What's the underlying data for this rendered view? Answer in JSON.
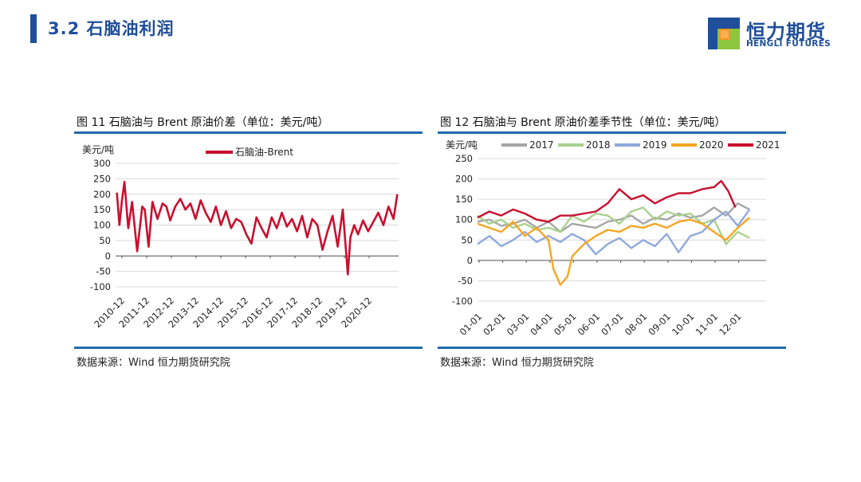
{
  "header": {
    "title": "3.2 石脑油利润",
    "logo_name": "恒力期货",
    "logo_sub": "HENGLI FUTURES",
    "logo_colors": {
      "green": "#8dc63f",
      "orange": "#f7941d",
      "blue": "#1f4e9a"
    }
  },
  "left": {
    "fig_title": "图 11 石脑油与 Brent 原油价差（单位：美元/吨）",
    "source": "数据来源：Wind 恒力期货研究院"
  },
  "right": {
    "fig_title": "图 12 石脑油与 Brent 原油价差季节性（单位：美元/吨）",
    "source": "数据来源：Wind 恒力期货研究院"
  },
  "chart_data": [
    {
      "type": "line",
      "title": "",
      "ylabel": "美元/吨",
      "xlabel": "",
      "ylim": [
        -100,
        300
      ],
      "yticks": [
        -100,
        -50,
        0,
        50,
        100,
        150,
        200,
        250,
        300
      ],
      "grid": true,
      "legend": "top",
      "x_ticklabels": [
        "2010-12",
        "2011-12",
        "2012-12",
        "2013-12",
        "2014-12",
        "2015-12",
        "2016-12",
        "2017-12",
        "2018-12",
        "2019-12",
        "2020-12"
      ],
      "series": [
        {
          "name": "石脑油-Brent",
          "color": "#c8102e",
          "x": [
            2010.9,
            2011.0,
            2011.1,
            2011.2,
            2011.35,
            2011.5,
            2011.7,
            2011.9,
            2012.0,
            2012.15,
            2012.3,
            2012.5,
            2012.7,
            2012.85,
            2013.0,
            2013.2,
            2013.4,
            2013.6,
            2013.8,
            2014.0,
            2014.2,
            2014.4,
            2014.6,
            2014.8,
            2015.0,
            2015.2,
            2015.4,
            2015.6,
            2015.8,
            2016.0,
            2016.2,
            2016.4,
            2016.6,
            2016.8,
            2017.0,
            2017.2,
            2017.4,
            2017.6,
            2017.8,
            2018.0,
            2018.2,
            2018.4,
            2018.6,
            2018.8,
            2019.0,
            2019.2,
            2019.4,
            2019.6,
            2019.8,
            2020.0,
            2020.1,
            2020.25,
            2020.4,
            2020.6,
            2020.8,
            2021.0,
            2021.2,
            2021.4,
            2021.6,
            2021.8,
            2021.95
          ],
          "y": [
            205,
            100,
            180,
            240,
            90,
            175,
            15,
            160,
            150,
            30,
            175,
            120,
            170,
            160,
            115,
            160,
            185,
            150,
            170,
            120,
            180,
            140,
            110,
            160,
            100,
            145,
            90,
            120,
            110,
            70,
            40,
            125,
            90,
            60,
            125,
            90,
            140,
            95,
            120,
            80,
            130,
            60,
            120,
            100,
            20,
            80,
            130,
            30,
            150,
            -60,
            60,
            100,
            70,
            115,
            80,
            110,
            140,
            100,
            160,
            120,
            200
          ]
        }
      ]
    },
    {
      "type": "line",
      "title": "",
      "ylabel": "美元/吨",
      "xlabel": "",
      "ylim": [
        -100,
        250
      ],
      "yticks": [
        -100,
        -50,
        0,
        50,
        100,
        150,
        200,
        250
      ],
      "grid": true,
      "legend": "top",
      "x_ticklabels": [
        "01-01",
        "02-01",
        "03-01",
        "04-01",
        "05-01",
        "06-01",
        "07-01",
        "08-01",
        "09-01",
        "10-01",
        "11-01",
        "12-01"
      ],
      "series": [
        {
          "name": "2017",
          "color": "#a6a6a6",
          "x": [
            0,
            0.5,
            1,
            1.5,
            2,
            2.5,
            3,
            3.5,
            4,
            4.5,
            5,
            5.5,
            6,
            6.5,
            7,
            7.5,
            8,
            8.5,
            9,
            9.5,
            10,
            10.5,
            11,
            11.5
          ],
          "y": [
            95,
            100,
            85,
            90,
            100,
            80,
            95,
            70,
            90,
            85,
            80,
            95,
            100,
            110,
            90,
            105,
            100,
            115,
            105,
            110,
            130,
            110,
            140,
            125
          ]
        },
        {
          "name": "2018",
          "color": "#a9d18e",
          "x": [
            0,
            0.5,
            1,
            1.5,
            2,
            2.5,
            3,
            3.5,
            4,
            4.5,
            5,
            5.5,
            6,
            6.5,
            7,
            7.5,
            8,
            8.5,
            9,
            9.5,
            10,
            10.5,
            11,
            11.5
          ],
          "y": [
            110,
            90,
            100,
            80,
            90,
            75,
            80,
            70,
            110,
            95,
            115,
            110,
            90,
            120,
            130,
            100,
            120,
            110,
            115,
            90,
            100,
            40,
            70,
            55
          ]
        },
        {
          "name": "2019",
          "color": "#8faadc",
          "x": [
            0,
            0.5,
            1,
            1.5,
            2,
            2.5,
            3,
            3.5,
            4,
            4.5,
            5,
            5.5,
            6,
            6.5,
            7,
            7.5,
            8,
            8.5,
            9,
            9.5,
            10,
            10.5,
            11,
            11.5
          ],
          "y": [
            40,
            60,
            35,
            50,
            70,
            45,
            60,
            45,
            65,
            50,
            15,
            40,
            55,
            30,
            50,
            35,
            65,
            20,
            60,
            70,
            100,
            120,
            85,
            125
          ]
        },
        {
          "name": "2020",
          "color": "#f5a623",
          "x": [
            0,
            0.5,
            1,
            1.5,
            2,
            2.5,
            3,
            3.2,
            3.5,
            3.8,
            4,
            4.5,
            5,
            5.5,
            6,
            6.5,
            7,
            7.5,
            8,
            8.5,
            9,
            9.5,
            10,
            10.5,
            11,
            11.5
          ],
          "y": [
            90,
            80,
            70,
            95,
            60,
            80,
            50,
            -20,
            -60,
            -40,
            10,
            40,
            60,
            75,
            70,
            85,
            80,
            90,
            80,
            95,
            100,
            90,
            70,
            50,
            80,
            105
          ]
        },
        {
          "name": "2021",
          "color": "#c8102e",
          "x": [
            0,
            0.5,
            1,
            1.5,
            2,
            2.5,
            3,
            3.5,
            4,
            4.5,
            5,
            5.5,
            6,
            6.5,
            7,
            7.5,
            8,
            8.5,
            9,
            9.5,
            10,
            10.3,
            10.6,
            10.9
          ],
          "y": [
            105,
            120,
            110,
            125,
            115,
            100,
            95,
            110,
            110,
            115,
            120,
            140,
            175,
            150,
            160,
            140,
            155,
            165,
            165,
            175,
            180,
            195,
            170,
            130
          ]
        }
      ]
    }
  ]
}
